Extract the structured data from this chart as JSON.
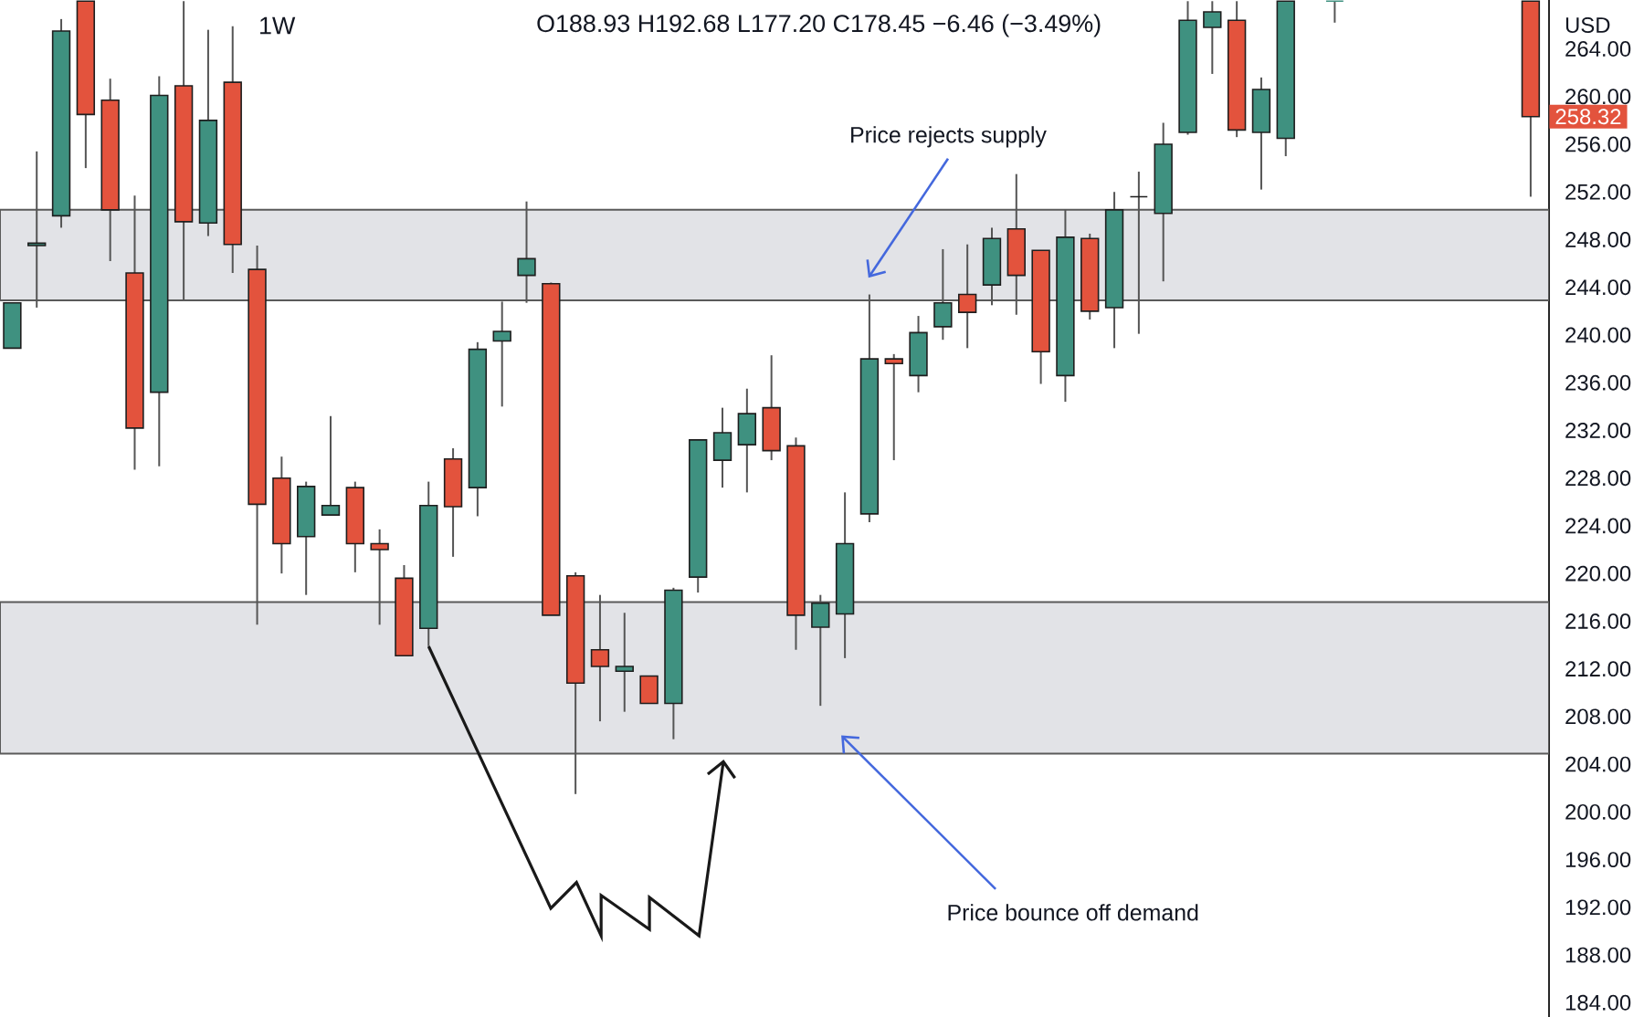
{
  "chart_data": {
    "type": "candlestick",
    "title": "1W",
    "subtitle": "O188.93 H192.68 L177.20 C178.45 −6.46 (−3.49%)",
    "ylabel": "USD",
    "tick_labels": "y",
    "categories": [
      null,
      null,
      null,
      null,
      null,
      null,
      null,
      null,
      null,
      null,
      null,
      null,
      null,
      null,
      null,
      null,
      null,
      null,
      null,
      null,
      null,
      null,
      null,
      null,
      null,
      null,
      null,
      null,
      null,
      null,
      null,
      null,
      null,
      null,
      null,
      null,
      null,
      null,
      null,
      null,
      null,
      null,
      null,
      null,
      null,
      null,
      null,
      null,
      null,
      null,
      null,
      null,
      null,
      null,
      null,
      null,
      null,
      null,
      null,
      null,
      null,
      null,
      null
    ],
    "ohlc": [
      [
        238.9,
        242.7,
        238.9,
        242.7
      ],
      [
        247.5,
        255.4,
        242.3,
        247.7
      ],
      [
        250.0,
        266.5,
        249.0,
        265.5
      ],
      [
        268.0,
        268.0,
        254.0,
        258.5
      ],
      [
        259.7,
        261.5,
        246.2,
        250.5
      ],
      [
        245.2,
        251.7,
        228.7,
        232.2
      ],
      [
        235.2,
        261.7,
        229.0,
        260.1
      ],
      [
        260.9,
        268.0,
        242.9,
        249.5
      ],
      [
        249.4,
        265.6,
        248.3,
        258.0
      ],
      [
        261.2,
        265.9,
        245.2,
        247.6
      ],
      [
        245.5,
        247.5,
        215.7,
        225.8
      ],
      [
        228.0,
        229.8,
        220.0,
        222.5
      ],
      [
        223.1,
        227.7,
        218.2,
        227.3
      ],
      [
        224.9,
        233.2,
        224.9,
        225.7
      ],
      [
        227.2,
        227.7,
        220.1,
        222.5
      ],
      [
        222.5,
        223.7,
        215.7,
        222.0
      ],
      [
        219.6,
        220.7,
        213.1,
        213.1
      ],
      [
        215.4,
        227.7,
        213.9,
        225.7
      ],
      [
        229.6,
        230.5,
        221.4,
        225.6
      ],
      [
        227.2,
        239.4,
        224.8,
        238.8
      ],
      [
        239.5,
        242.8,
        234.0,
        240.3
      ],
      [
        245.0,
        251.2,
        242.7,
        246.4
      ],
      [
        244.3,
        244.4,
        216.5,
        216.5
      ],
      [
        219.8,
        220.1,
        201.5,
        210.8
      ],
      [
        213.6,
        218.2,
        207.6,
        212.2
      ],
      [
        211.8,
        216.7,
        208.4,
        212.2
      ],
      [
        211.4,
        211.4,
        209.1,
        209.1
      ],
      [
        209.1,
        218.8,
        206.1,
        218.6
      ],
      [
        219.7,
        231.2,
        218.4,
        231.2
      ],
      [
        229.5,
        233.9,
        227.2,
        231.8
      ],
      [
        230.8,
        235.5,
        226.8,
        233.4
      ],
      [
        233.9,
        238.3,
        229.5,
        230.3
      ],
      [
        230.7,
        231.4,
        213.6,
        216.5
      ],
      [
        215.5,
        218.2,
        208.9,
        217.5
      ],
      [
        216.6,
        226.8,
        212.9,
        222.5
      ],
      [
        225.0,
        243.4,
        224.3,
        238.0
      ],
      [
        238.0,
        238.4,
        229.5,
        237.6
      ],
      [
        236.6,
        241.6,
        235.2,
        240.2
      ],
      [
        240.7,
        247.2,
        239.6,
        242.7
      ],
      [
        243.4,
        247.6,
        238.9,
        241.9
      ],
      [
        244.2,
        249.0,
        242.5,
        248.1
      ],
      [
        248.9,
        253.5,
        241.7,
        245.0
      ],
      [
        247.1,
        247.1,
        235.9,
        238.6
      ],
      [
        236.6,
        250.5,
        234.4,
        248.2
      ],
      [
        248.1,
        248.5,
        241.3,
        242.0
      ],
      [
        242.3,
        252.0,
        238.9,
        250.5
      ],
      [
        251.6,
        253.7,
        240.1,
        251.6
      ],
      [
        250.2,
        257.8,
        244.5,
        256.0
      ],
      [
        257.0,
        268.0,
        256.8,
        266.4
      ],
      [
        265.8,
        268.0,
        261.9,
        267.1
      ],
      [
        266.4,
        268.0,
        256.6,
        257.2
      ],
      [
        257.0,
        261.6,
        252.2,
        260.6
      ],
      [
        256.5,
        268.0,
        255.0,
        268.0
      ],
      null,
      [
        268.0,
        268.0,
        266.2,
        268.0
      ],
      null,
      null,
      null,
      null,
      null,
      null,
      null,
      [
        268.0,
        268.0,
        251.6,
        258.32
      ]
    ],
    "colors": [
      "#3f9180",
      "#3f9180",
      "#3f9180",
      "#e3533d",
      "#e3533d",
      "#e3533d",
      "#3f9180",
      "#e3533d",
      "#3f9180",
      "#e3533d",
      "#e3533d",
      "#e3533d",
      "#3f9180",
      "#3f9180",
      "#e3533d",
      "#e3533d",
      "#e3533d",
      "#3f9180",
      "#e3533d",
      "#3f9180",
      "#3f9180",
      "#3f9180",
      "#e3533d",
      "#e3533d",
      "#e3533d",
      "#3f9180",
      "#e3533d",
      "#3f9180",
      "#3f9180",
      "#3f9180",
      "#3f9180",
      "#e3533d",
      "#e3533d",
      "#3f9180",
      "#3f9180",
      "#3f9180",
      "#e3533d",
      "#3f9180",
      "#3f9180",
      "#e3533d",
      "#3f9180",
      "#e3533d",
      "#e3533d",
      "#3f9180",
      "#e3533d",
      "#3f9180",
      "#1e1e1e",
      "#3f9180",
      "#3f9180",
      "#3f9180",
      "#e3533d",
      "#3f9180",
      "#3f9180",
      null,
      "#3f9180",
      null,
      null,
      null,
      null,
      null,
      null,
      null,
      "#e3533d"
    ],
    "ylim": [
      182.8,
      268.1
    ],
    "yticks": [
      {
        "value": 184,
        "label": "184.00"
      },
      {
        "value": 188,
        "label": "188.00"
      },
      {
        "value": 192,
        "label": "192.00"
      },
      {
        "value": 196,
        "label": "196.00"
      },
      {
        "value": 200,
        "label": "200.00"
      },
      {
        "value": 204,
        "label": "204.00"
      },
      {
        "value": 208,
        "label": "208.00"
      },
      {
        "value": 212,
        "label": "212.00"
      },
      {
        "value": 216,
        "label": "216.00"
      },
      {
        "value": 220,
        "label": "220.00"
      },
      {
        "value": 224,
        "label": "224.00"
      },
      {
        "value": 228,
        "label": "228.00"
      },
      {
        "value": 232,
        "label": "232.00"
      },
      {
        "value": 236,
        "label": "236.00"
      },
      {
        "value": 240,
        "label": "240.00"
      },
      {
        "value": 244,
        "label": "244.00"
      },
      {
        "value": 248,
        "label": "248.00"
      },
      {
        "value": 252,
        "label": "252.00"
      },
      {
        "value": 256,
        "label": "256.00"
      },
      {
        "value": 260,
        "label": "260.00"
      },
      {
        "value": 264,
        "label": "264.00"
      }
    ],
    "bands": [
      {
        "axis": "y",
        "from": 242.9,
        "to": 250.5,
        "label": "Price rejects supply",
        "color": "#e2e3e7"
      },
      {
        "axis": "y",
        "from": 204.9,
        "to": 217.6,
        "label": "Price bounce off demand",
        "color": "#e2e3e7"
      }
    ],
    "annotations": [
      {
        "text": "258.32",
        "y": 258.32
      }
    ]
  }
}
